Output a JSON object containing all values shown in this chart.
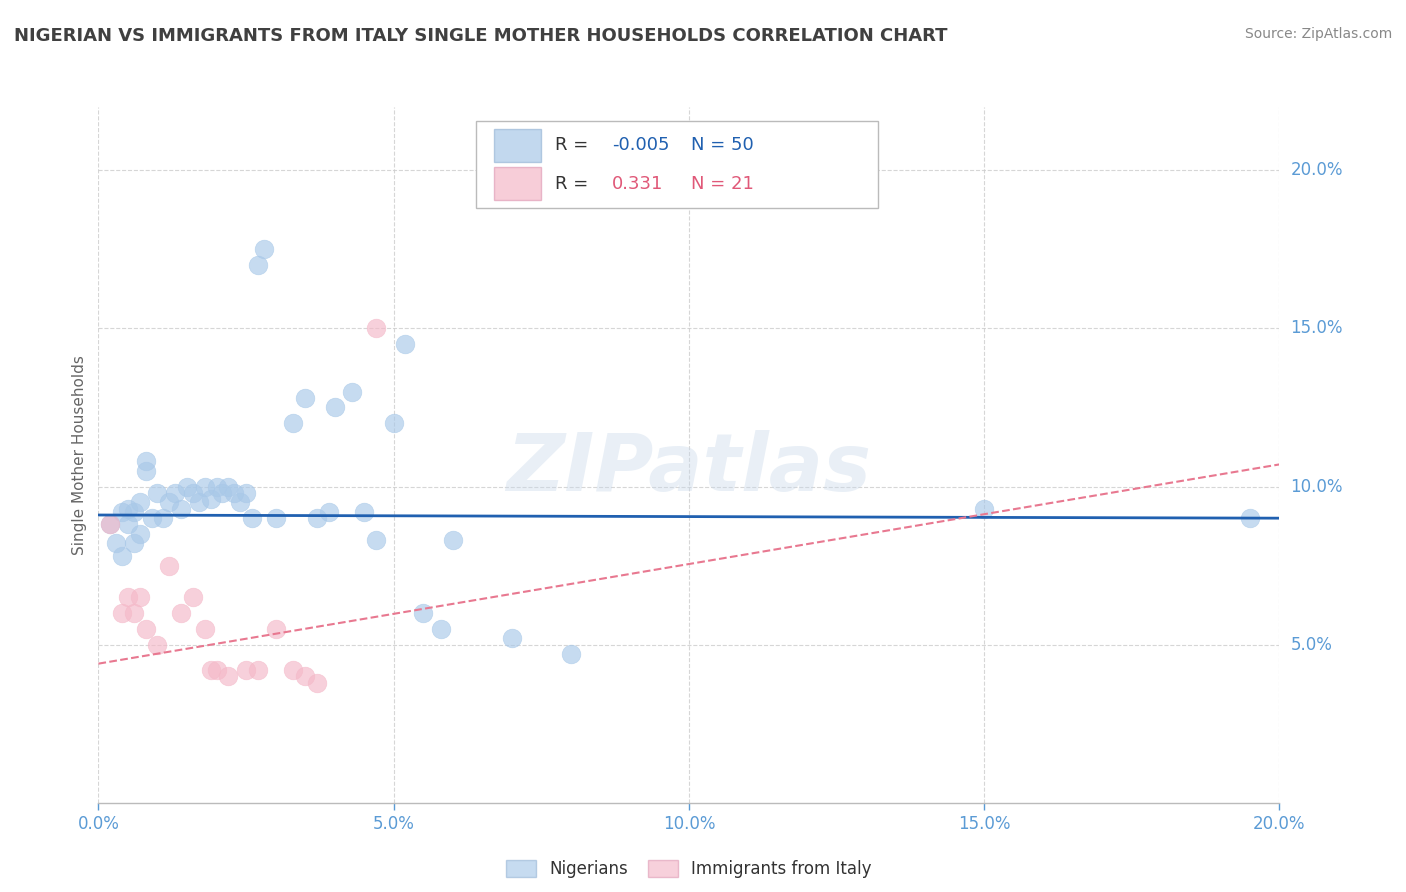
{
  "title": "NIGERIAN VS IMMIGRANTS FROM ITALY SINGLE MOTHER HOUSEHOLDS CORRELATION CHART",
  "source": "Source: ZipAtlas.com",
  "ylabel": "Single Mother Households",
  "watermark": "ZIPatlas",
  "xlim": [
    0.0,
    0.2
  ],
  "ylim": [
    0.0,
    0.22
  ],
  "blue_r": -0.005,
  "blue_n": 50,
  "pink_r": 0.331,
  "pink_n": 21,
  "blue_color": "#a8c8e8",
  "pink_color": "#f4b8c8",
  "blue_line_color": "#2060b0",
  "pink_line_color": "#e87890",
  "blue_scatter": [
    [
      0.002,
      0.088
    ],
    [
      0.003,
      0.082
    ],
    [
      0.004,
      0.092
    ],
    [
      0.004,
      0.078
    ],
    [
      0.005,
      0.093
    ],
    [
      0.005,
      0.088
    ],
    [
      0.006,
      0.082
    ],
    [
      0.006,
      0.092
    ],
    [
      0.007,
      0.085
    ],
    [
      0.007,
      0.095
    ],
    [
      0.008,
      0.105
    ],
    [
      0.008,
      0.108
    ],
    [
      0.009,
      0.09
    ],
    [
      0.01,
      0.098
    ],
    [
      0.011,
      0.09
    ],
    [
      0.012,
      0.095
    ],
    [
      0.013,
      0.098
    ],
    [
      0.014,
      0.093
    ],
    [
      0.015,
      0.1
    ],
    [
      0.016,
      0.098
    ],
    [
      0.017,
      0.095
    ],
    [
      0.018,
      0.1
    ],
    [
      0.019,
      0.096
    ],
    [
      0.02,
      0.1
    ],
    [
      0.021,
      0.098
    ],
    [
      0.022,
      0.1
    ],
    [
      0.023,
      0.098
    ],
    [
      0.024,
      0.095
    ],
    [
      0.025,
      0.098
    ],
    [
      0.026,
      0.09
    ],
    [
      0.027,
      0.17
    ],
    [
      0.028,
      0.175
    ],
    [
      0.03,
      0.09
    ],
    [
      0.033,
      0.12
    ],
    [
      0.035,
      0.128
    ],
    [
      0.037,
      0.09
    ],
    [
      0.039,
      0.092
    ],
    [
      0.04,
      0.125
    ],
    [
      0.043,
      0.13
    ],
    [
      0.045,
      0.092
    ],
    [
      0.047,
      0.083
    ],
    [
      0.05,
      0.12
    ],
    [
      0.052,
      0.145
    ],
    [
      0.055,
      0.06
    ],
    [
      0.058,
      0.055
    ],
    [
      0.06,
      0.083
    ],
    [
      0.07,
      0.052
    ],
    [
      0.08,
      0.047
    ],
    [
      0.15,
      0.093
    ],
    [
      0.195,
      0.09
    ]
  ],
  "pink_scatter": [
    [
      0.002,
      0.088
    ],
    [
      0.004,
      0.06
    ],
    [
      0.005,
      0.065
    ],
    [
      0.006,
      0.06
    ],
    [
      0.007,
      0.065
    ],
    [
      0.008,
      0.055
    ],
    [
      0.01,
      0.05
    ],
    [
      0.012,
      0.075
    ],
    [
      0.014,
      0.06
    ],
    [
      0.016,
      0.065
    ],
    [
      0.018,
      0.055
    ],
    [
      0.019,
      0.042
    ],
    [
      0.02,
      0.042
    ],
    [
      0.022,
      0.04
    ],
    [
      0.025,
      0.042
    ],
    [
      0.027,
      0.042
    ],
    [
      0.03,
      0.055
    ],
    [
      0.033,
      0.042
    ],
    [
      0.035,
      0.04
    ],
    [
      0.037,
      0.038
    ],
    [
      0.047,
      0.15
    ]
  ],
  "blue_line_x": [
    0.0,
    0.2
  ],
  "blue_line_y": [
    0.091,
    0.09
  ],
  "pink_line_x": [
    0.0,
    0.2
  ],
  "pink_line_y": [
    0.044,
    0.107
  ],
  "grid_color": "#cccccc",
  "background_color": "#ffffff",
  "tick_color": "#5b9bd5",
  "title_color": "#404040",
  "source_color": "#888888",
  "ylabel_color": "#666666"
}
